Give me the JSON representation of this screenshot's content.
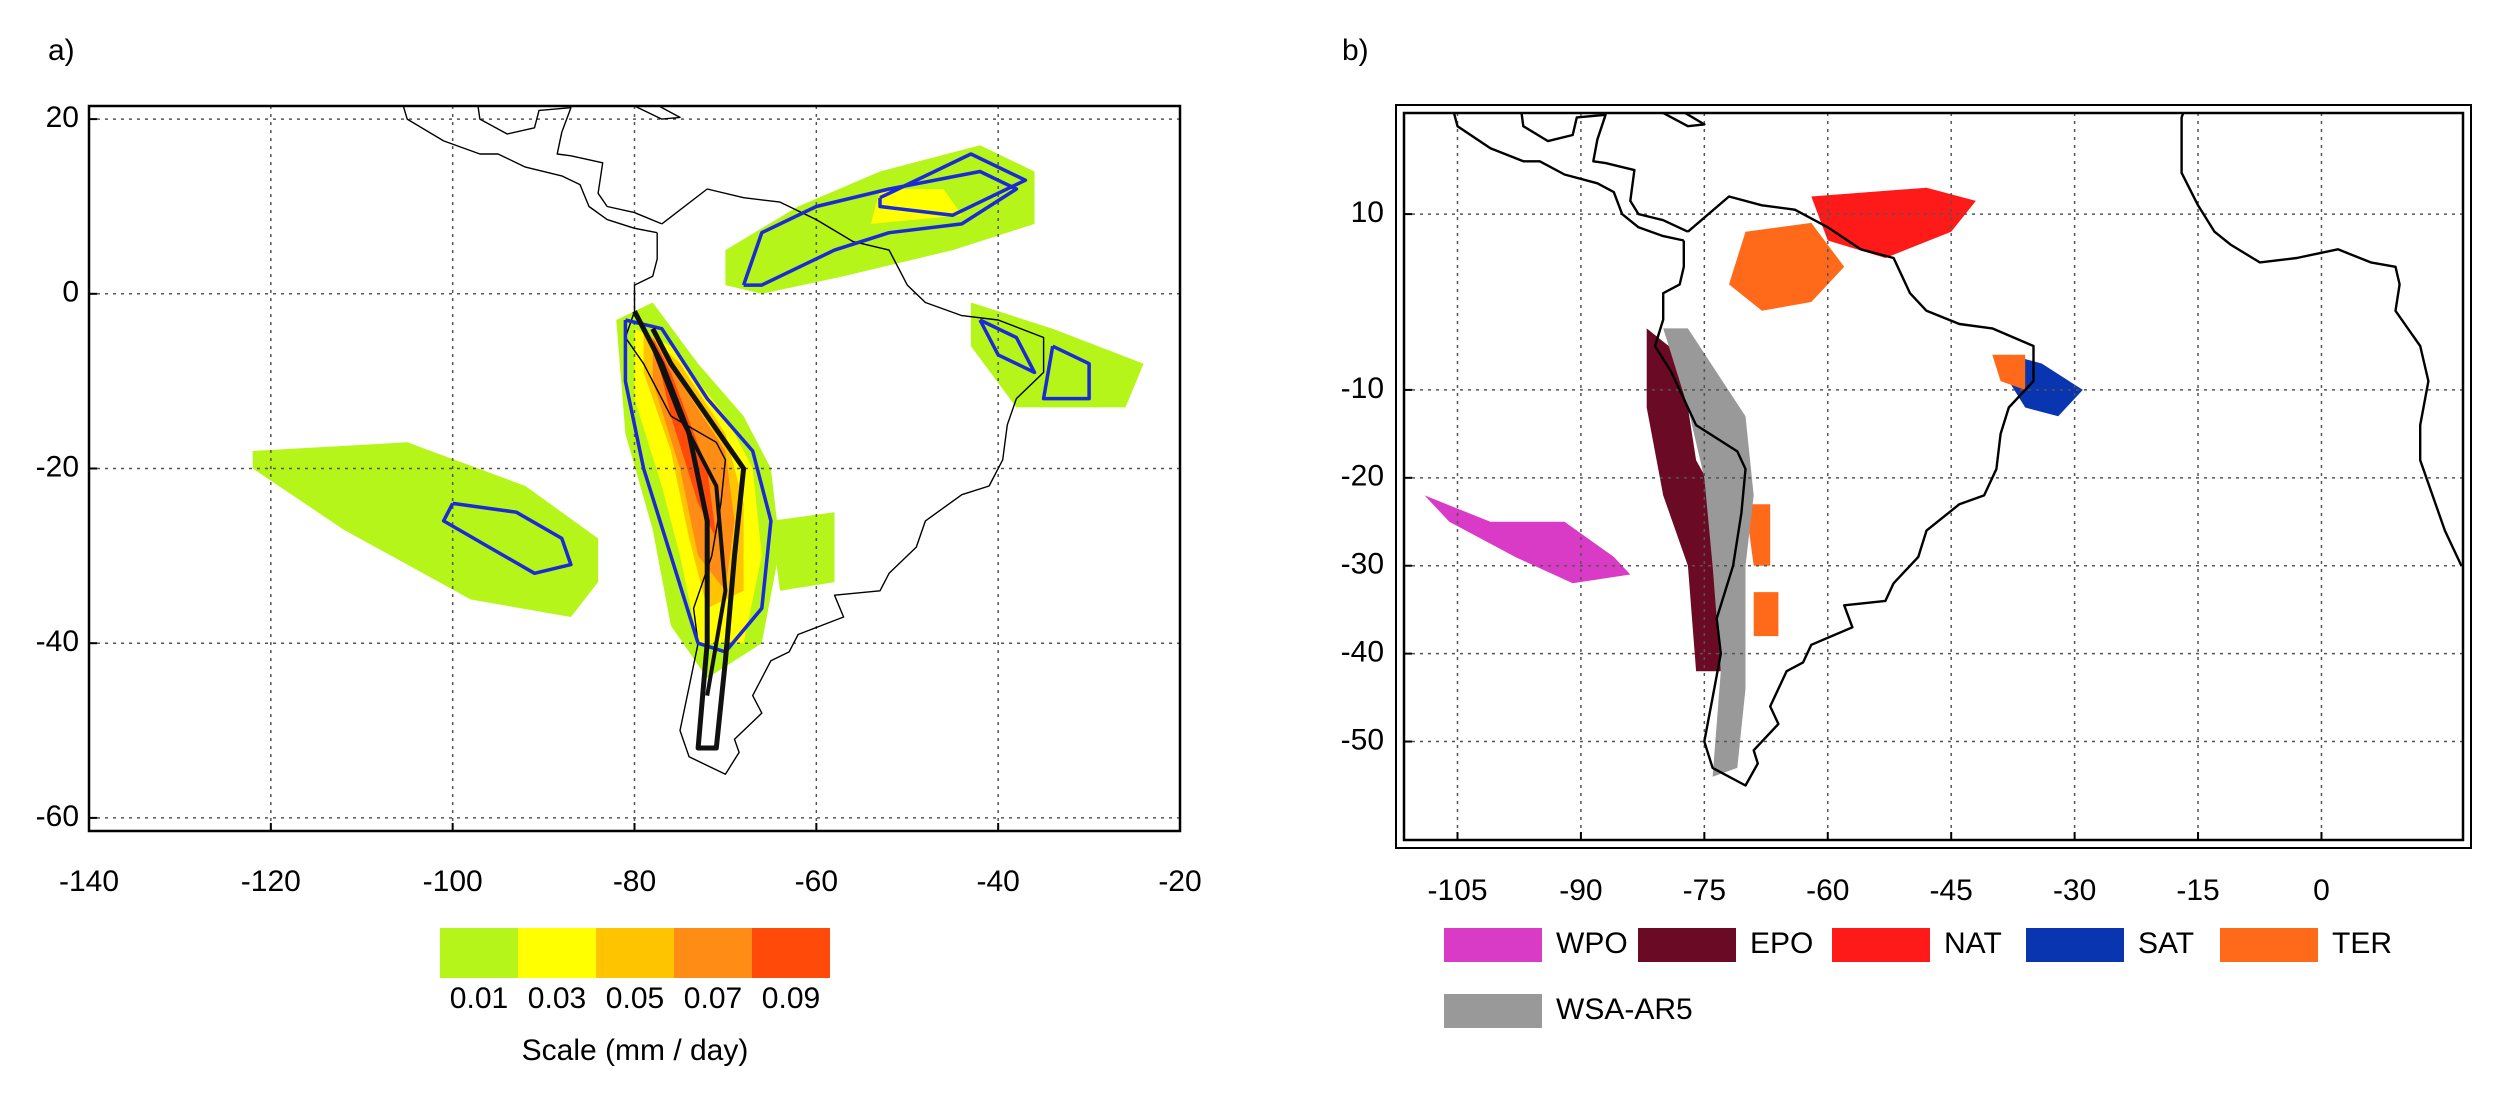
{
  "panels": [
    {
      "label": "a)",
      "xlim": [
        -140,
        -20
      ],
      "ylim": [
        -61.5,
        21.5
      ],
      "xticks": [
        -140,
        -120,
        -100,
        -80,
        -60,
        -40,
        -20
      ],
      "yticks": [
        -60,
        -40,
        -20,
        0,
        20
      ],
      "grid": true,
      "colorbar": {
        "title": "Scale (mm / day)",
        "labels": [
          0.01,
          0.03,
          0.05,
          0.07,
          0.09
        ],
        "colors": [
          "#b5f51a",
          "#ffff00",
          "#ffc400",
          "#ff8c14",
          "#ff4a0a"
        ]
      }
    },
    {
      "label": "b)",
      "xlim": [
        -111.5,
        17.2
      ],
      "ylim": [
        -61.2,
        21.5
      ],
      "xticks": [
        -105,
        -90,
        -75,
        -60,
        -45,
        -30,
        -15,
        0
      ],
      "yticks": [
        -50,
        -40,
        -30,
        -20,
        -10,
        10
      ],
      "grid": true,
      "legend": [
        {
          "name": "WPO",
          "color": "#d93ac6"
        },
        {
          "name": "EPO",
          "color": "#6b0a24"
        },
        {
          "name": "NAT",
          "color": "#ff1a1a"
        },
        {
          "name": "SAT",
          "color": "#0a35b0"
        },
        {
          "name": "TER",
          "color": "#ff6a1a"
        },
        {
          "name": "WSA-AR5",
          "color": "#999999"
        }
      ]
    }
  ]
}
